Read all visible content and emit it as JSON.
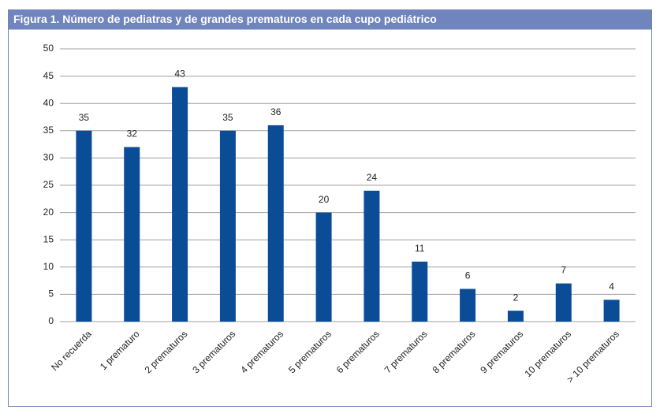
{
  "chart_data": {
    "type": "bar",
    "title": "Figura 1. Número de pediatras y de grandes prematuros en cada cupo pediátrico",
    "categories": [
      "No recuerda",
      "1 prematuro",
      "2 prematuros",
      "3 prematuros",
      "4 prematuros",
      "5 prematuros",
      "6 prematuros",
      "7 prematuros",
      "8 prematuros",
      "9 prematuros",
      "10 prematuros",
      "> 10 prematuros"
    ],
    "values": [
      35,
      32,
      43,
      35,
      36,
      20,
      24,
      11,
      6,
      2,
      7,
      4
    ],
    "color": "#0b4c97",
    "ylim": [
      0,
      50
    ],
    "yticks": [
      0,
      5,
      10,
      15,
      20,
      25,
      30,
      35,
      40,
      45,
      50
    ],
    "grid": true
  }
}
